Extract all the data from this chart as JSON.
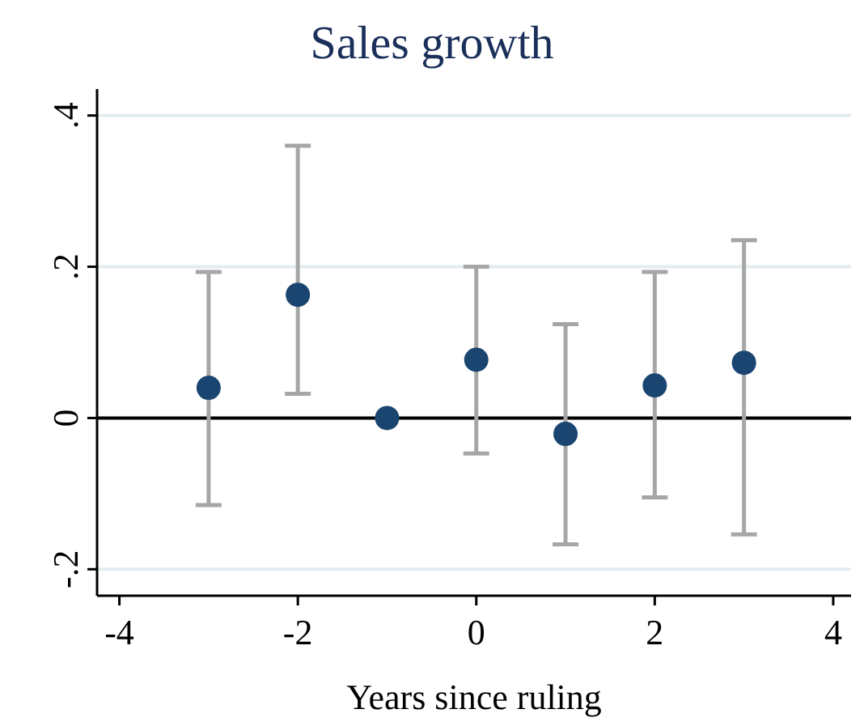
{
  "chart_data": {
    "type": "scatter",
    "title": "Sales growth",
    "xlabel": "Years since ruling",
    "x": [
      -3,
      -2,
      -1,
      0,
      1,
      2,
      3
    ],
    "values": [
      0.04,
      0.163,
      0,
      0.077,
      -0.021,
      0.043,
      0.073
    ],
    "errors": [
      [
        -0.115,
        0.193
      ],
      [
        0.032,
        0.36
      ],
      null,
      [
        -0.047,
        0.2
      ],
      [
        -0.167,
        0.124
      ],
      [
        -0.105,
        0.193
      ],
      [
        -0.154,
        0.235
      ]
    ],
    "color": "#1a4570",
    "marker": "circle",
    "grid": "y",
    "xlim": [
      -4.25,
      4.2
    ],
    "xticks": [
      -4,
      -2,
      0,
      2,
      4
    ],
    "ylim": [
      -0.235,
      0.435
    ],
    "yticks": [
      {
        "value": -0.2,
        "label": "-.2"
      },
      {
        "value": 0,
        "label": "0"
      },
      {
        "value": 0.2,
        "label": ".2"
      },
      {
        "value": 0.4,
        "label": ".4"
      }
    ],
    "ref_lines": [
      {
        "axis": "y",
        "value": 0,
        "color": "#000000"
      }
    ]
  }
}
